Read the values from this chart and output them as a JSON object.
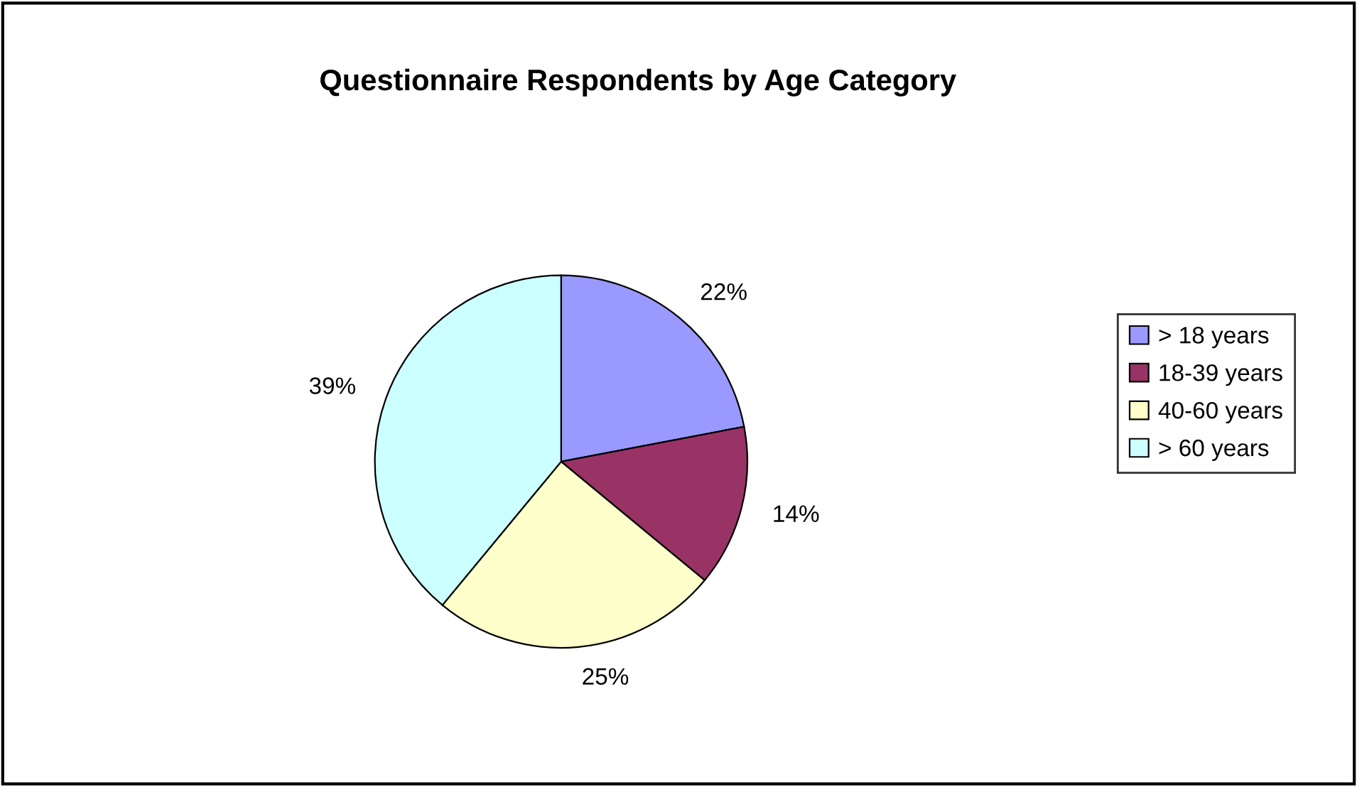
{
  "chart_data": {
    "type": "pie",
    "title": "Questionnaire Respondents by Age Category",
    "categories": [
      "> 18 years",
      "18-39 years",
      "40-60 years",
      "> 60 years"
    ],
    "values": [
      22,
      14,
      25,
      39
    ],
    "colors": [
      "#9999ff",
      "#993366",
      "#ffffcc",
      "#ccffff"
    ],
    "value_labels": [
      "22%",
      "14%",
      "25%",
      "39%"
    ],
    "legend": "right"
  }
}
